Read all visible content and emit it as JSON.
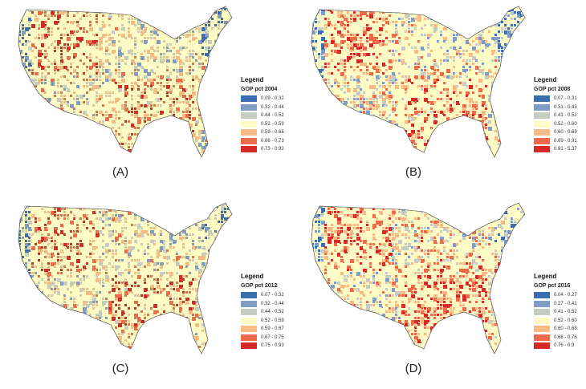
{
  "legend_title": "Legend",
  "class_colors": [
    "#3b6db3",
    "#7f9cc4",
    "#c5ccc2",
    "#fffcc6",
    "#f8bb85",
    "#ee6a4b",
    "#d52a28"
  ],
  "panels": [
    {
      "label": "(A)",
      "field": "GOP pct 2004",
      "classes": [
        "0.09 - 0.32",
        "0.32 - 0.44",
        "0.44 - 0.52",
        "0.52 - 0.59",
        "0.59 - 0.66",
        "0.66 - 0.73",
        "0.73 - 0.92"
      ]
    },
    {
      "label": "(B)",
      "field": "GOP pct 2008",
      "classes": [
        "0.07 - 0.31",
        "0.31 - 0.43",
        "0.43 - 0.52",
        "0.52 - 0.60",
        "0.60 - 0.69",
        "0.69 - 0.91",
        "0.91 - 5.37"
      ]
    },
    {
      "label": "(C)",
      "field": "GOP pct 2012",
      "classes": [
        "0.07 - 0.32",
        "0.32 - 0.44",
        "0.44 - 0.52",
        "0.52 - 0.59",
        "0.59 - 0.67",
        "0.67 - 0.75",
        "0.75 - 0.93"
      ]
    },
    {
      "label": "(D)",
      "field": "GOP pct 2016",
      "classes": [
        "0.04 - 0.27",
        "0.27 - 0.41",
        "0.41 - 0.52",
        "0.52 - 0.60",
        "0.60 - 0.68",
        "0.68 - 0.76",
        "0.76 - 0.9"
      ]
    }
  ]
}
